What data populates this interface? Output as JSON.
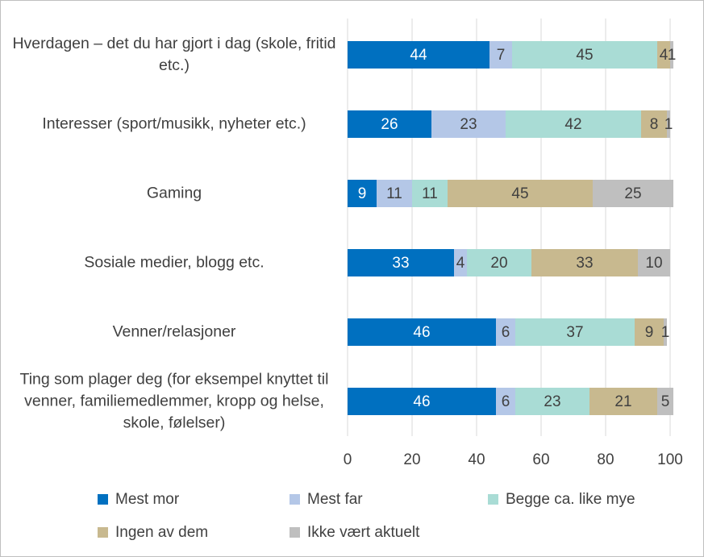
{
  "chart_data": {
    "type": "stacked-bar-horizontal",
    "categories": [
      "Hverdagen – det du har gjort i dag (skole, fritid etc.)",
      "Interesser (sport/musikk, nyheter etc.)",
      "Gaming",
      "Sosiale medier, blogg etc.",
      "Venner/relasjoner",
      "Ting som plager deg (for eksempel knyttet til venner, familiemedlemmer, kropp og helse, skole, følelser)"
    ],
    "series": [
      {
        "name": "Mest mor",
        "color": "#0070c0",
        "values": [
          44,
          26,
          9,
          33,
          46,
          46
        ]
      },
      {
        "name": "Mest far",
        "color": "#b4c7e7",
        "values": [
          7,
          23,
          11,
          4,
          6,
          6
        ]
      },
      {
        "name": "Begge ca. like mye",
        "color": "#a9dcd5",
        "values": [
          45,
          42,
          11,
          20,
          37,
          23
        ]
      },
      {
        "name": "Ingen av dem",
        "color": "#c8b98f",
        "values": [
          4,
          8,
          45,
          33,
          9,
          21
        ]
      },
      {
        "name": "Ikke vært aktuelt",
        "color": "#bfbfbf",
        "values": [
          1,
          1,
          25,
          10,
          1,
          5
        ]
      }
    ],
    "xlim": [
      0,
      100
    ],
    "xticks": [
      0,
      20,
      40,
      60,
      80,
      100
    ],
    "grid": true
  }
}
